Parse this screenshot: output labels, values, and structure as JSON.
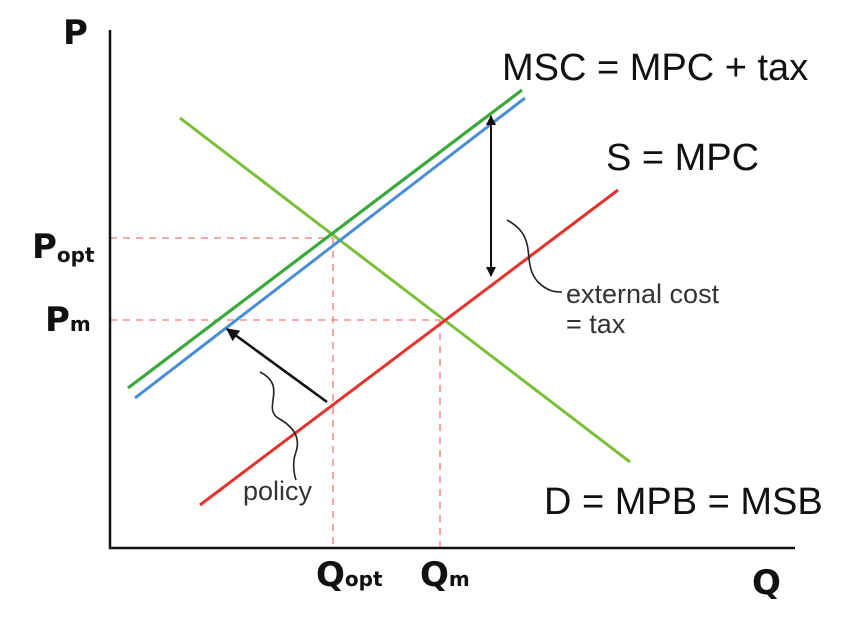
{
  "axes": {
    "y_label": "P",
    "x_label": "Q"
  },
  "price_ticks": [
    {
      "main": "P",
      "sub": "opt"
    },
    {
      "main": "P",
      "sub": "m"
    }
  ],
  "quantity_ticks": [
    {
      "main": "Q",
      "sub": "opt"
    },
    {
      "main": "Q",
      "sub": "m"
    }
  ],
  "curves": {
    "msc": {
      "label": "MSC = MPC + tax",
      "color": "#3aa83a"
    },
    "shifted_supply": {
      "color": "#4a8fd6"
    },
    "supply": {
      "label": "S = MPC",
      "color": "#e2332c"
    },
    "demand": {
      "label": "D = MPB = MSB",
      "color": "#7cbf3a"
    }
  },
  "annotations": {
    "external_cost_line1": "external cost",
    "external_cost_line2": "= tax",
    "policy": "policy"
  },
  "colors": {
    "guide_lines": "#e97b6e",
    "arrows": "#111111",
    "axes": "#111111"
  }
}
